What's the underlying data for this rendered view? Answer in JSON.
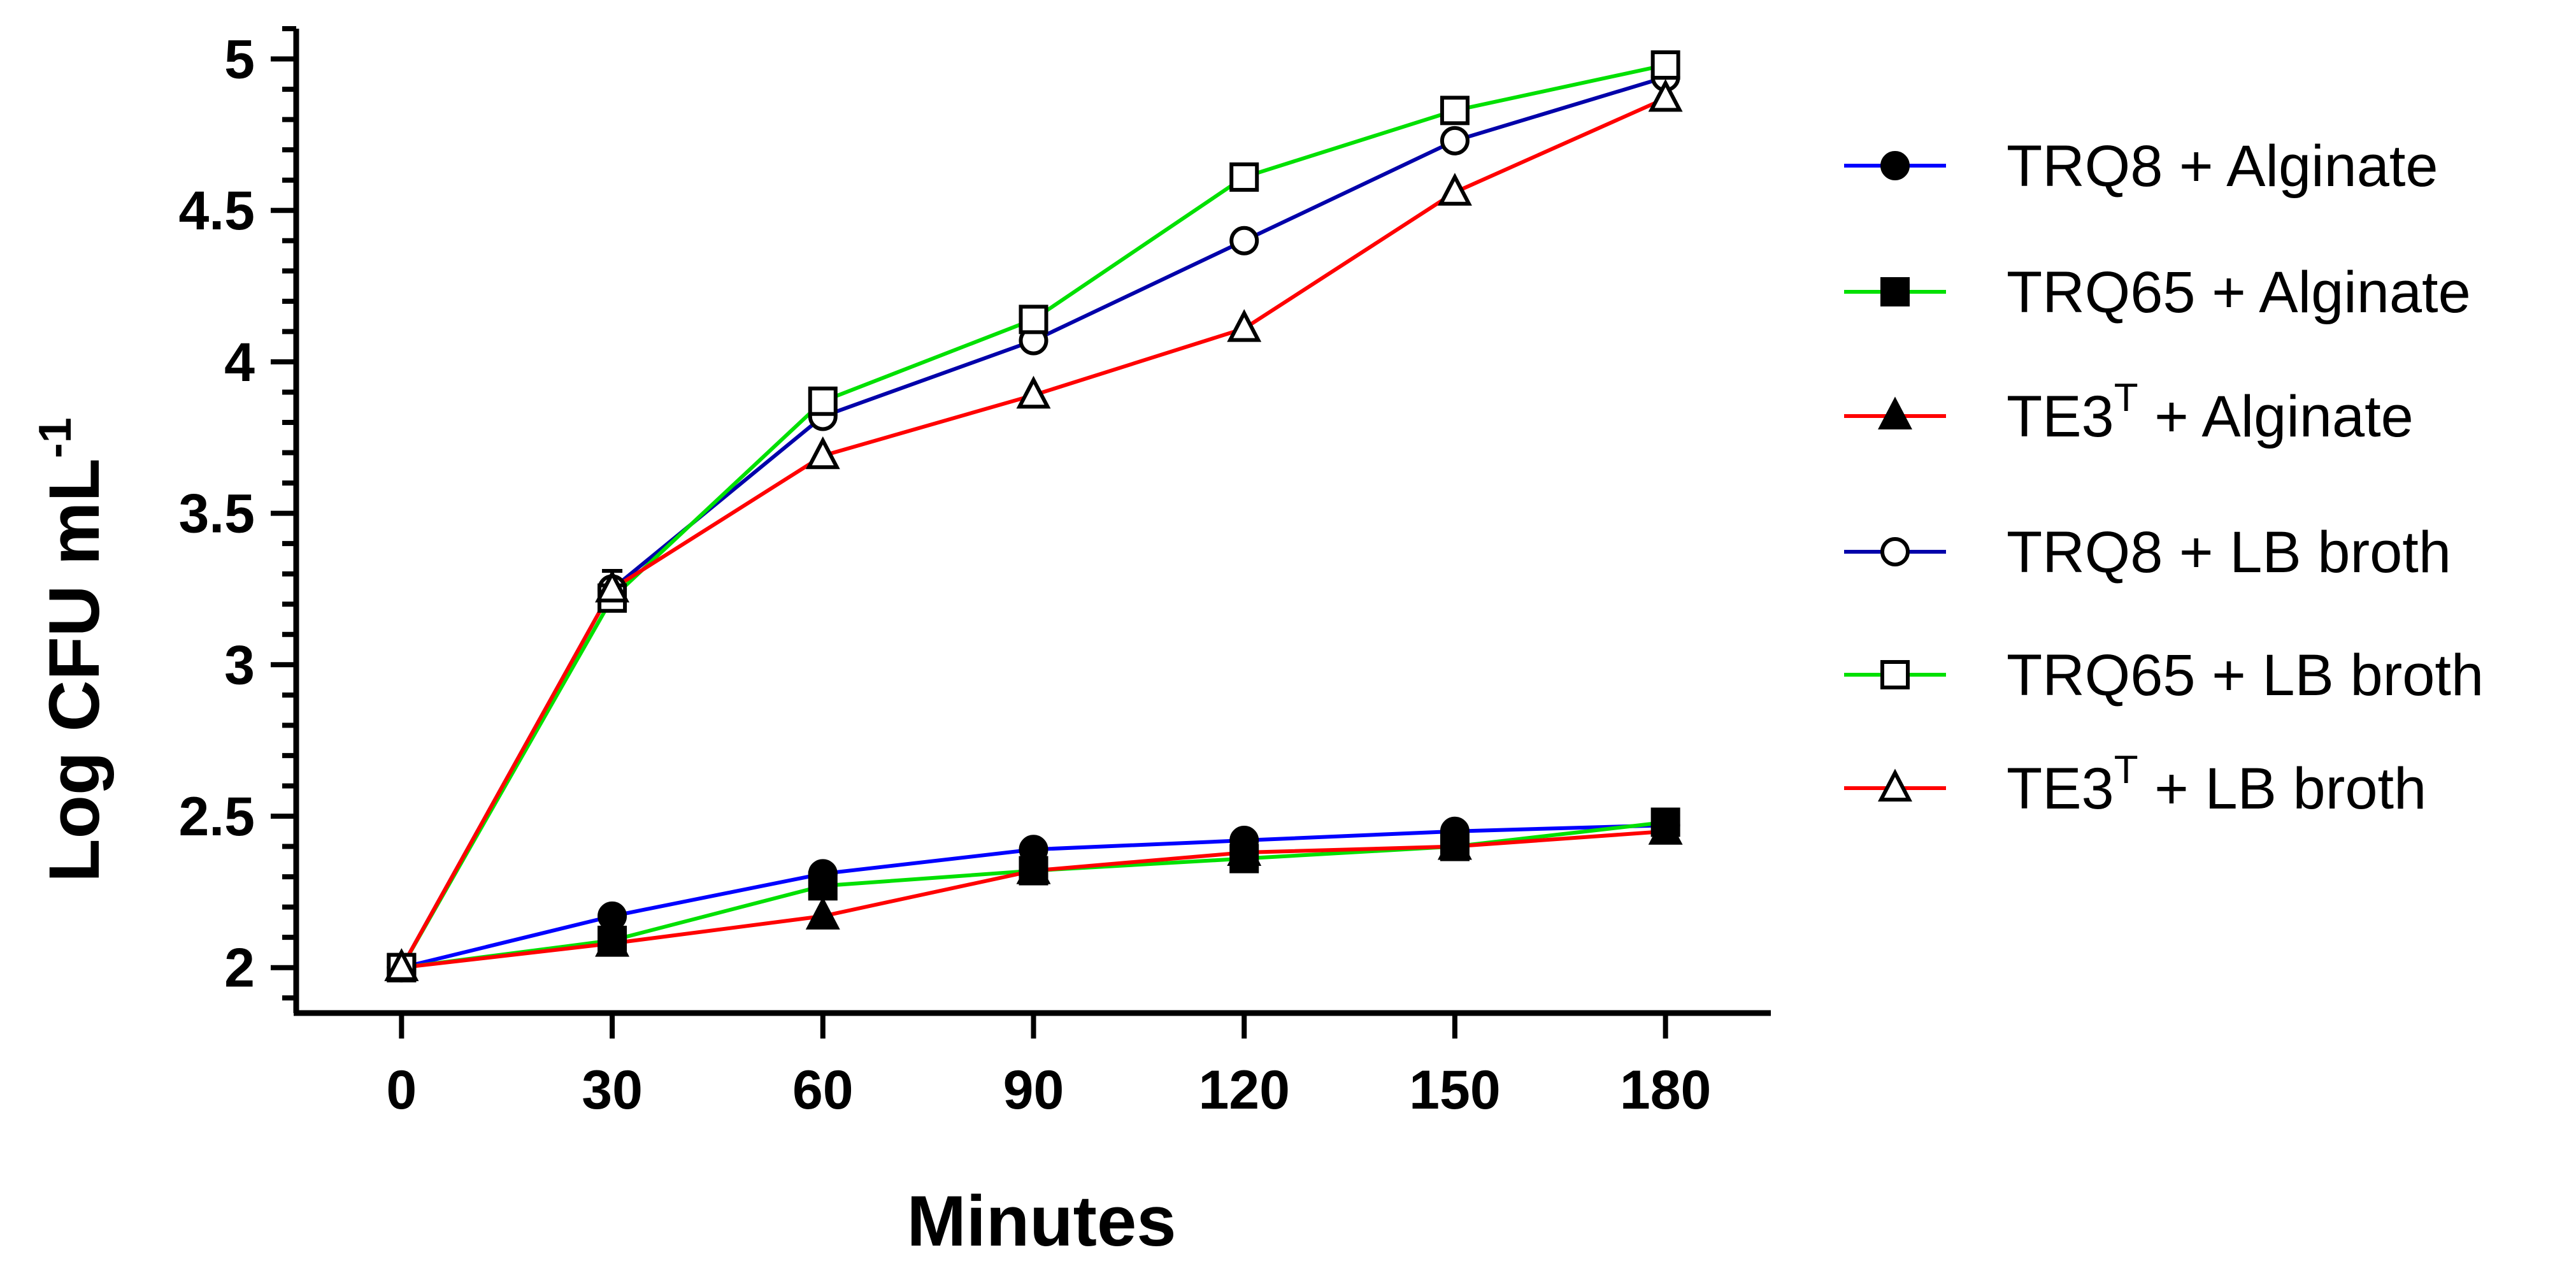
{
  "chart_data": {
    "type": "line",
    "title": "",
    "xlabel": "Minutes",
    "ylabel": {
      "main": "Log CFU mL",
      "superscript": "-1"
    },
    "x": [
      0,
      30,
      60,
      90,
      120,
      150,
      180
    ],
    "xticks": [
      "0",
      "30",
      "60",
      "90",
      "120",
      "150",
      "180"
    ],
    "yticks": [
      "2",
      "2.5",
      "3",
      "3.5",
      "4",
      "4.5",
      "5"
    ],
    "xlim": [
      -15,
      195
    ],
    "ylim": [
      1.85,
      5.1
    ],
    "grid": false,
    "legend_position": "right",
    "series": [
      {
        "name": "TRQ8 + Alginate",
        "label_main": "TRQ8 + Alginate",
        "label_sup": "",
        "label_rest": "",
        "color": "#0000ff",
        "marker": "circle",
        "filled": true,
        "values": [
          2.0,
          2.17,
          2.31,
          2.39,
          2.42,
          2.45,
          2.47
        ]
      },
      {
        "name": "TRQ65 + Alginate",
        "label_main": "TRQ65 + Alginate",
        "label_sup": "",
        "label_rest": "",
        "color": "#00e000",
        "marker": "square",
        "filled": true,
        "values": [
          2.0,
          2.09,
          2.27,
          2.32,
          2.36,
          2.4,
          2.48
        ]
      },
      {
        "name": "TE3T + Alginate",
        "label_main": "TE3",
        "label_sup": "T",
        "label_rest": " + Alginate",
        "color": "#ff0000",
        "marker": "triangle",
        "filled": true,
        "values": [
          2.0,
          2.08,
          2.17,
          2.32,
          2.38,
          2.4,
          2.45
        ]
      },
      {
        "name": "TRQ8 + LB broth",
        "label_main": "TRQ8 + LB broth",
        "label_sup": "",
        "label_rest": "",
        "color": "#0000aa",
        "marker": "circle",
        "filled": false,
        "values": [
          2.0,
          3.25,
          3.82,
          4.07,
          4.4,
          4.73,
          4.94
        ]
      },
      {
        "name": "TRQ65 + LB broth",
        "label_main": "TRQ65 + LB broth",
        "label_sup": "",
        "label_rest": "",
        "color": "#00e000",
        "marker": "square",
        "filled": false,
        "values": [
          2.0,
          3.22,
          3.87,
          4.14,
          4.61,
          4.83,
          4.98
        ]
      },
      {
        "name": "TE3T + LB broth",
        "label_main": "TE3",
        "label_sup": "T",
        "label_rest": " + LB broth",
        "color": "#ff0000",
        "marker": "triangle",
        "filled": false,
        "values": [
          2.0,
          3.25,
          3.69,
          3.89,
          4.11,
          4.56,
          4.87
        ]
      }
    ]
  }
}
